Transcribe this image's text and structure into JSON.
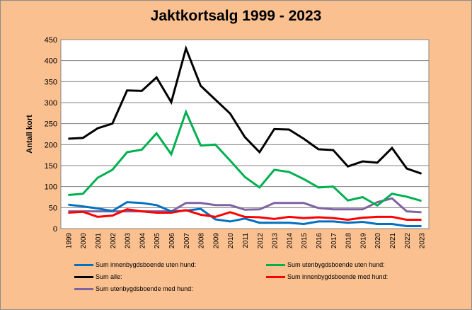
{
  "chart_data": {
    "type": "line",
    "title": "Jaktkortsalg 1999 - 2023",
    "xlabel": "",
    "ylabel": "Antall kort",
    "ylim": [
      0,
      450
    ],
    "yticks": [
      "0",
      "50",
      "100",
      "150",
      "200",
      "250",
      "300",
      "350",
      "400",
      "450"
    ],
    "grid": true,
    "legend_position": "bottom",
    "categories": [
      "1999",
      "2000",
      "2001",
      "2002",
      "2003",
      "2004",
      "2005",
      "2006",
      "2007",
      "2008",
      "2009",
      "2010",
      "2011",
      "2012",
      "2013",
      "2014",
      "2015",
      "2016",
      "2017",
      "2018",
      "2019",
      "2020",
      "2021",
      "2022",
      "2023"
    ],
    "series": [
      {
        "name": "Sum innenbygdsboende uten hund:",
        "color": "#0070C0",
        "values": [
          57,
          53,
          48,
          42,
          63,
          61,
          56,
          41,
          43,
          47,
          22,
          17,
          24,
          14,
          14,
          14,
          11,
          17,
          17,
          14,
          16,
          11,
          11,
          6,
          6
        ]
      },
      {
        "name": "Sum utenbygdsboende uten hund:",
        "color": "#00B050",
        "values": [
          80,
          83,
          121,
          140,
          182,
          188,
          227,
          177,
          278,
          198,
          200,
          162,
          123,
          98,
          140,
          135,
          118,
          98,
          100,
          67,
          75,
          55,
          83,
          76,
          66
        ]
      },
      {
        "name": "Sum alle:",
        "color": "#000000",
        "values": [
          214,
          216,
          239,
          250,
          329,
          328,
          360,
          301,
          429,
          340,
          307,
          274,
          218,
          182,
          237,
          236,
          214,
          189,
          187,
          148,
          160,
          157,
          192,
          143,
          131
        ]
      },
      {
        "name": "Sum innenbygdsboende med hund:",
        "color": "#FF0000",
        "values": [
          38,
          40,
          28,
          31,
          46,
          41,
          38,
          38,
          44,
          33,
          28,
          39,
          28,
          27,
          23,
          28,
          25,
          27,
          25,
          21,
          26,
          28,
          28,
          21,
          21
        ]
      },
      {
        "name": "Sum utenbygdsboende med hund:",
        "color": "#8064A2",
        "values": [
          41,
          41,
          41,
          41,
          41,
          41,
          41,
          41,
          61,
          61,
          56,
          56,
          45,
          46,
          61,
          61,
          61,
          49,
          46,
          46,
          46,
          63,
          72,
          41,
          39
        ]
      }
    ]
  }
}
